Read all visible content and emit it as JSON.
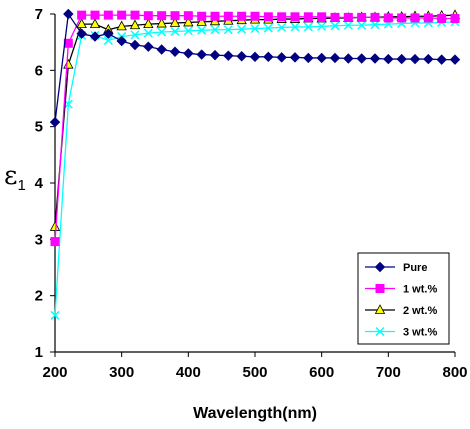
{
  "chart_data": {
    "type": "line",
    "xlabel": "Wavelength(nm)",
    "ylabel": "ε",
    "ylabel_subscript": "1",
    "xlim": [
      200,
      800
    ],
    "ylim": [
      1,
      7
    ],
    "xticks": [
      200,
      300,
      400,
      500,
      600,
      700,
      800
    ],
    "yticks": [
      1,
      2,
      3,
      4,
      5,
      6,
      7
    ],
    "legend_position": "bottom-right",
    "grid": false,
    "x": [
      200,
      220,
      240,
      260,
      280,
      300,
      320,
      340,
      360,
      380,
      400,
      420,
      440,
      460,
      480,
      500,
      520,
      540,
      560,
      580,
      600,
      620,
      640,
      660,
      680,
      700,
      720,
      740,
      760,
      780,
      800
    ],
    "series": [
      {
        "name": "Pure",
        "color": "#000080",
        "marker": "diamond",
        "values": [
          5.08,
          7.0,
          6.65,
          6.6,
          6.65,
          6.52,
          6.45,
          6.42,
          6.37,
          6.33,
          6.3,
          6.28,
          6.27,
          6.26,
          6.25,
          6.24,
          6.24,
          6.23,
          6.23,
          6.22,
          6.22,
          6.22,
          6.21,
          6.21,
          6.21,
          6.2,
          6.2,
          6.2,
          6.2,
          6.19,
          6.19
        ]
      },
      {
        "name": "1 wt.%",
        "color": "#FF00FF",
        "marker": "square",
        "values": [
          2.96,
          6.48,
          6.98,
          6.98,
          6.98,
          6.98,
          6.98,
          6.97,
          6.97,
          6.97,
          6.97,
          6.96,
          6.96,
          6.96,
          6.96,
          6.96,
          6.95,
          6.95,
          6.95,
          6.95,
          6.95,
          6.94,
          6.94,
          6.94,
          6.94,
          6.93,
          6.93,
          6.93,
          6.93,
          6.92,
          6.92
        ]
      },
      {
        "name": "2 wt.%",
        "color": "#FFFF00",
        "marker": "triangle",
        "values": [
          3.22,
          6.1,
          6.82,
          6.82,
          6.72,
          6.78,
          6.8,
          6.82,
          6.83,
          6.84,
          6.85,
          6.86,
          6.87,
          6.88,
          6.89,
          6.9,
          6.9,
          6.91,
          6.91,
          6.92,
          6.92,
          6.93,
          6.93,
          6.94,
          6.94,
          6.95,
          6.95,
          6.96,
          6.96,
          6.97,
          6.98
        ]
      },
      {
        "name": "3 wt.%",
        "color": "#00FFFF",
        "marker": "x",
        "values": [
          1.65,
          5.4,
          6.62,
          6.62,
          6.53,
          6.6,
          6.63,
          6.66,
          6.68,
          6.69,
          6.7,
          6.71,
          6.72,
          6.72,
          6.73,
          6.74,
          6.75,
          6.76,
          6.77,
          6.77,
          6.78,
          6.79,
          6.8,
          6.8,
          6.81,
          6.82,
          6.83,
          6.84,
          6.84,
          6.85,
          6.86
        ]
      }
    ]
  }
}
